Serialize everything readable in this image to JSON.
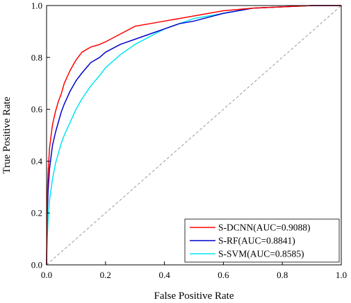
{
  "chart_data": {
    "type": "line",
    "title": "",
    "xlabel": "False Positive Rate",
    "ylabel": "True Positive Rate",
    "xlim": [
      0,
      1
    ],
    "ylim": [
      0,
      1
    ],
    "xticks": [
      "0.0",
      "0.2",
      "0.4",
      "0.6",
      "0.8",
      "1.0"
    ],
    "yticks": [
      "0.0",
      "0.2",
      "0.4",
      "0.6",
      "0.8",
      "1.0"
    ],
    "grid": false,
    "legend_position": "bottom-right",
    "reference_line": {
      "style": "dashed",
      "color": "#999999",
      "x": [
        0,
        1
      ],
      "y": [
        0,
        1
      ]
    },
    "series": [
      {
        "name": "S-DCNN(AUC=0.9088)",
        "color": "#ff0000",
        "x": [
          0,
          0.002,
          0.005,
          0.01,
          0.02,
          0.03,
          0.04,
          0.05,
          0.06,
          0.08,
          0.1,
          0.12,
          0.15,
          0.18,
          0.2,
          0.25,
          0.3,
          0.35,
          0.4,
          0.45,
          0.5,
          0.55,
          0.6,
          0.65,
          0.7,
          0.8,
          0.9,
          1.0
        ],
        "y": [
          0,
          0.25,
          0.35,
          0.45,
          0.54,
          0.59,
          0.63,
          0.66,
          0.7,
          0.75,
          0.79,
          0.82,
          0.84,
          0.85,
          0.86,
          0.89,
          0.92,
          0.93,
          0.94,
          0.95,
          0.96,
          0.97,
          0.98,
          0.985,
          0.99,
          0.995,
          1.0,
          1.0
        ]
      },
      {
        "name": "S-RF(AUC=0.8841)",
        "color": "#0000cc",
        "x": [
          0,
          0.002,
          0.005,
          0.01,
          0.02,
          0.03,
          0.04,
          0.05,
          0.06,
          0.08,
          0.1,
          0.12,
          0.15,
          0.18,
          0.2,
          0.25,
          0.3,
          0.35,
          0.4,
          0.45,
          0.5,
          0.55,
          0.6,
          0.65,
          0.7,
          0.8,
          0.9,
          1.0
        ],
        "y": [
          0,
          0.18,
          0.28,
          0.37,
          0.46,
          0.51,
          0.55,
          0.59,
          0.62,
          0.67,
          0.71,
          0.74,
          0.78,
          0.8,
          0.82,
          0.85,
          0.87,
          0.89,
          0.91,
          0.93,
          0.94,
          0.955,
          0.97,
          0.98,
          0.99,
          0.995,
          1.0,
          1.0
        ]
      },
      {
        "name": "S-SVM(AUC=0.8585)",
        "color": "#00e5ee",
        "x": [
          0,
          0.002,
          0.005,
          0.01,
          0.02,
          0.03,
          0.04,
          0.05,
          0.06,
          0.08,
          0.1,
          0.12,
          0.15,
          0.18,
          0.2,
          0.25,
          0.3,
          0.35,
          0.4,
          0.45,
          0.5,
          0.55,
          0.6,
          0.65,
          0.7,
          0.8,
          0.9,
          1.0
        ],
        "y": [
          0,
          0.1,
          0.17,
          0.25,
          0.33,
          0.39,
          0.43,
          0.47,
          0.5,
          0.55,
          0.6,
          0.64,
          0.69,
          0.73,
          0.76,
          0.81,
          0.85,
          0.88,
          0.91,
          0.93,
          0.95,
          0.96,
          0.97,
          0.98,
          0.99,
          0.995,
          1.0,
          1.0
        ]
      }
    ]
  }
}
